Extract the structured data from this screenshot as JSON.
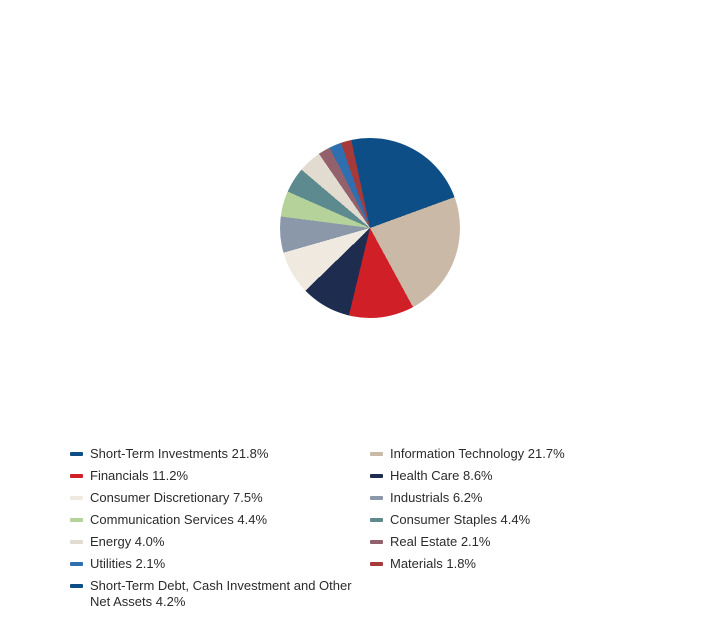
{
  "chart": {
    "type": "pie",
    "background_color": "#ffffff",
    "label_fontsize": 13,
    "label_color": "#2b2b2b",
    "slices": [
      {
        "name": "Short-Term Investments",
        "pct": 21.8,
        "color": "#0d4e86"
      },
      {
        "name": "Information Technology",
        "pct": 21.7,
        "color": "#c9b9a6"
      },
      {
        "name": "Financials",
        "pct": 11.2,
        "color": "#d11f27"
      },
      {
        "name": "Health Care",
        "pct": 8.6,
        "color": "#1e2d4f"
      },
      {
        "name": "Consumer Discretionary",
        "pct": 7.5,
        "color": "#efe9df"
      },
      {
        "name": "Industrials",
        "pct": 6.2,
        "color": "#8a98a9"
      },
      {
        "name": "Communication Services",
        "pct": 4.4,
        "color": "#b5d29a"
      },
      {
        "name": "Consumer Staples",
        "pct": 4.4,
        "color": "#5c8a8f"
      },
      {
        "name": "Energy",
        "pct": 4.0,
        "color": "#e2dcd0"
      },
      {
        "name": "Real Estate",
        "pct": 2.1,
        "color": "#93616b"
      },
      {
        "name": "Utilities",
        "pct": 2.1,
        "color": "#2f6fb0"
      },
      {
        "name": "Materials",
        "pct": 1.8,
        "color": "#a63a3a"
      },
      {
        "name": "Short-Term Debt, Cash Investment and Other Net Assets",
        "pct": 4.2,
        "color": "#0d4e86"
      }
    ],
    "legend_columns": 2,
    "start_angle_deg": -12
  }
}
